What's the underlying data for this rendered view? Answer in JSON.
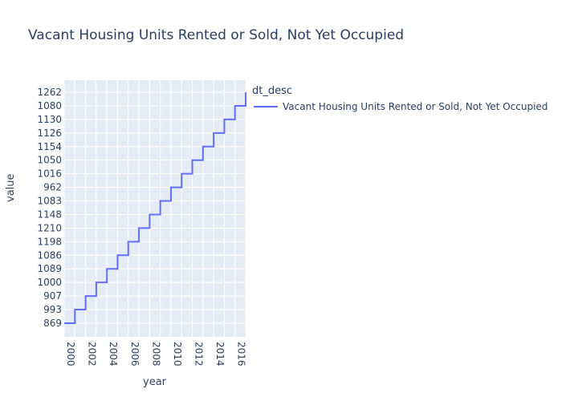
{
  "chart_data": {
    "type": "line",
    "line_shape": "step",
    "title": "Vacant Housing Units Rented or Sold, Not Yet Occupied",
    "xlabel": "year",
    "ylabel": "value",
    "legend_title": "dt_desc",
    "legend_position": "top-right",
    "grid": true,
    "plot_bg": "#e5ecf6",
    "x_ticks": [
      "2000",
      "2002",
      "2004",
      "2006",
      "2008",
      "2010",
      "2012",
      "2014",
      "2016"
    ],
    "y_categories": [
      "869",
      "993",
      "907",
      "1000",
      "1089",
      "1086",
      "1198",
      "1210",
      "1148",
      "1083",
      "962",
      "1016",
      "1050",
      "1154",
      "1126",
      "1130",
      "1080",
      "1262"
    ],
    "series": [
      {
        "name": "Vacant Housing Units Rented or Sold, Not Yet Occupied",
        "color": "#636efa",
        "x": [
          2000,
          2001,
          2002,
          2003,
          2004,
          2005,
          2006,
          2007,
          2008,
          2009,
          2010,
          2011,
          2012,
          2013,
          2014,
          2015,
          2016,
          2017
        ],
        "y": [
          "869",
          "993",
          "907",
          "1000",
          "1089",
          "1086",
          "1198",
          "1210",
          "1148",
          "1083",
          "962",
          "1016",
          "1050",
          "1154",
          "1126",
          "1130",
          "1080",
          "1262"
        ]
      }
    ]
  }
}
